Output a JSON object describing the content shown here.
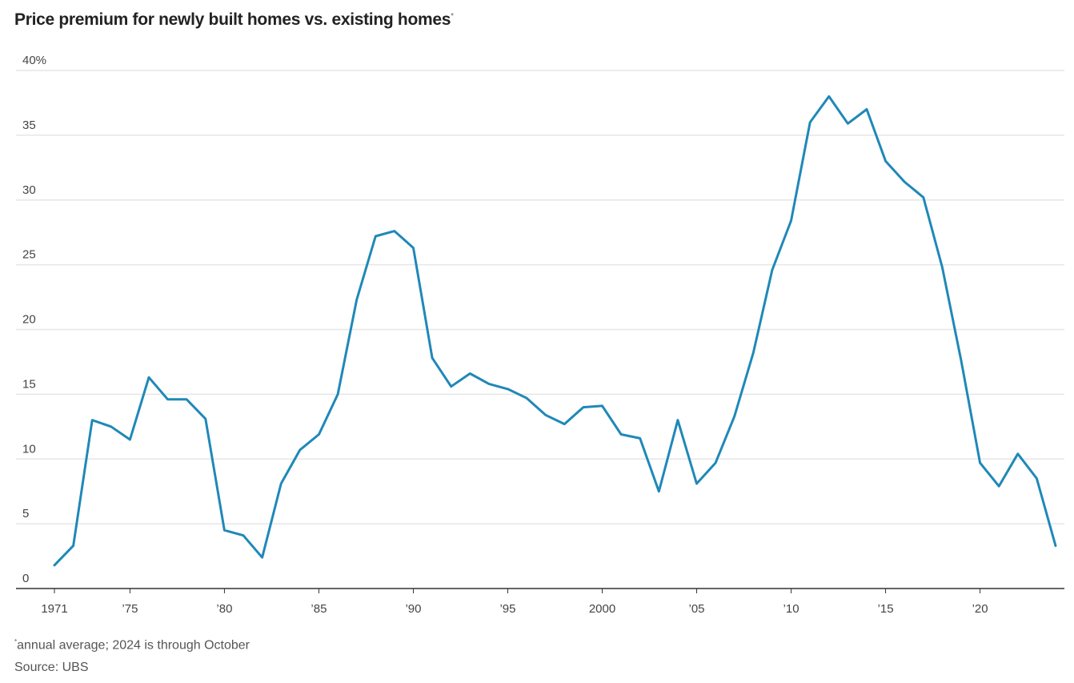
{
  "title": "Price premium for newly built homes vs. existing homes",
  "title_marker": "*",
  "footnote_marker": "*",
  "footnote": "annual average; 2024 is through October",
  "source": "Source: UBS",
  "colors": {
    "line": "#1f88b8",
    "grid": "#e6e6e6",
    "axis": "#333333"
  },
  "chart_data": {
    "type": "line",
    "title": "Price premium for newly built homes vs. existing homes",
    "xlabel": "",
    "ylabel": "",
    "xlim": [
      1971,
      2024
    ],
    "ylim": [
      0,
      40
    ],
    "y_ticks": [
      {
        "value": 0,
        "label": "0"
      },
      {
        "value": 5,
        "label": "5"
      },
      {
        "value": 10,
        "label": "10"
      },
      {
        "value": 15,
        "label": "15"
      },
      {
        "value": 20,
        "label": "20"
      },
      {
        "value": 25,
        "label": "25"
      },
      {
        "value": 30,
        "label": "30"
      },
      {
        "value": 35,
        "label": "35"
      },
      {
        "value": 40,
        "label": "40%"
      }
    ],
    "x_ticks": [
      {
        "value": 1971,
        "label": "1971"
      },
      {
        "value": 1975,
        "label": "’75"
      },
      {
        "value": 1980,
        "label": "’80"
      },
      {
        "value": 1985,
        "label": "’85"
      },
      {
        "value": 1990,
        "label": "’90"
      },
      {
        "value": 1995,
        "label": "’95"
      },
      {
        "value": 2000,
        "label": "2000"
      },
      {
        "value": 2005,
        "label": "’05"
      },
      {
        "value": 2010,
        "label": "’10"
      },
      {
        "value": 2015,
        "label": "’15"
      },
      {
        "value": 2020,
        "label": "’20"
      }
    ],
    "grid": true,
    "series": [
      {
        "x": [
          1971,
          1972,
          1973,
          1974,
          1975,
          1976,
          1977,
          1978,
          1979,
          1980,
          1981,
          1982,
          1983,
          1984,
          1985,
          1986,
          1987,
          1988,
          1989,
          1990,
          1991,
          1992,
          1993,
          1994,
          1995,
          1996,
          1997,
          1998,
          1999,
          2000,
          2001,
          2002,
          2003,
          2004,
          2005,
          2006,
          2007,
          2008,
          2009,
          2010,
          2011,
          2012,
          2013,
          2014,
          2015,
          2016,
          2017,
          2018,
          2019,
          2020,
          2021,
          2022,
          2023,
          2024
        ],
        "y": [
          1.8,
          3.3,
          13.0,
          12.5,
          11.5,
          16.3,
          14.6,
          14.6,
          13.1,
          4.5,
          4.1,
          2.4,
          8.1,
          10.7,
          11.9,
          15.0,
          22.3,
          27.2,
          27.6,
          26.3,
          17.8,
          15.6,
          16.6,
          15.8,
          15.4,
          14.7,
          13.4,
          12.7,
          14.0,
          14.1,
          11.9,
          11.6,
          7.5,
          13.0,
          8.1,
          9.7,
          13.3,
          18.2,
          24.6,
          28.4,
          36.0,
          38.0,
          35.9,
          37.0,
          33.0,
          31.4,
          30.2,
          24.8,
          17.6,
          9.7,
          7.9,
          10.4,
          8.5,
          3.3
        ]
      }
    ]
  }
}
